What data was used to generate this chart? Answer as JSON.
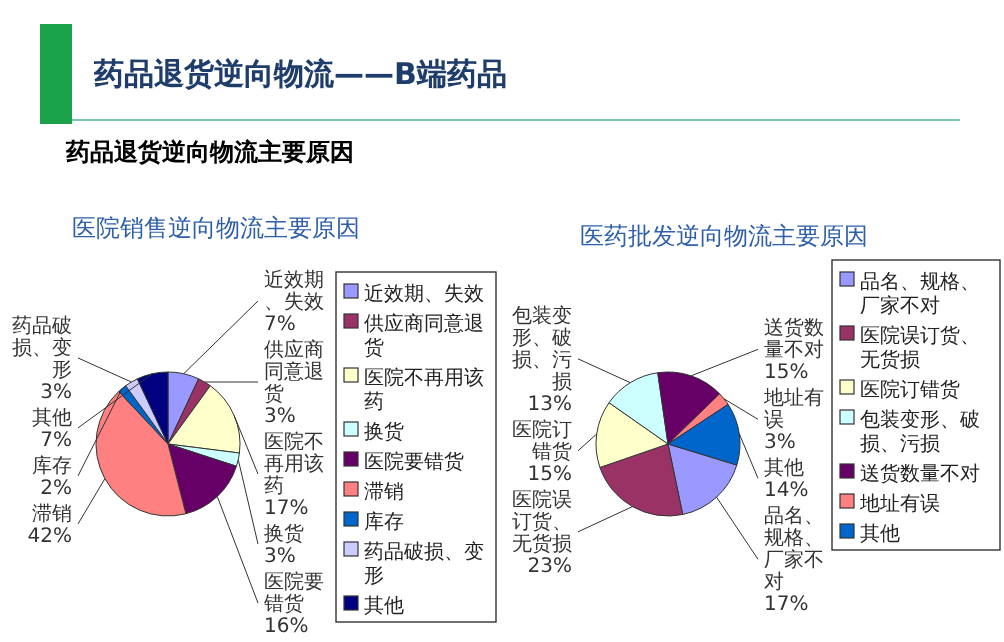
{
  "chart_data": [
    {
      "type": "other",
      "title": "药品退货逆向物流——B端药品",
      "subtitle": "药品退货逆向物流主要原因"
    },
    {
      "type": "pie",
      "title": "医院销售逆向物流主要原因",
      "categories": [
        "近效期、失效",
        "供应商同意退货",
        "医院不再用该药",
        "换货",
        "医院要错货",
        "滞销",
        "库存",
        "药品破损、变形",
        "其他"
      ],
      "values": [
        7,
        3,
        17,
        3,
        16,
        42,
        2,
        3,
        7
      ],
      "value_labels": [
        "7%",
        "3%",
        "17%",
        "3%",
        "16%",
        "42%",
        "2%",
        "3%",
        "7%"
      ],
      "colors": [
        "#9999ff",
        "#993366",
        "#ffffcc",
        "#ccffff",
        "#660066",
        "#ff8080",
        "#0066cc",
        "#ccccff",
        "#000080"
      ],
      "legend": "right"
    },
    {
      "type": "pie",
      "title": "医药批发逆向物流主要原因",
      "categories": [
        "品名、规格、厂家不对",
        "医院误订货、无货损",
        "医院订错货",
        "包装变形、破损、污损",
        "送货数量不对",
        "地址有误",
        "其他"
      ],
      "values": [
        17,
        23,
        15,
        13,
        15,
        3,
        14
      ],
      "value_labels": [
        "17%",
        "23%",
        "15%",
        "13%",
        "15%",
        "3%",
        "14%"
      ],
      "colors": [
        "#9999ff",
        "#993366",
        "#ffffcc",
        "#ccffff",
        "#660066",
        "#ff8080",
        "#0066cc"
      ],
      "legend": "right"
    }
  ]
}
